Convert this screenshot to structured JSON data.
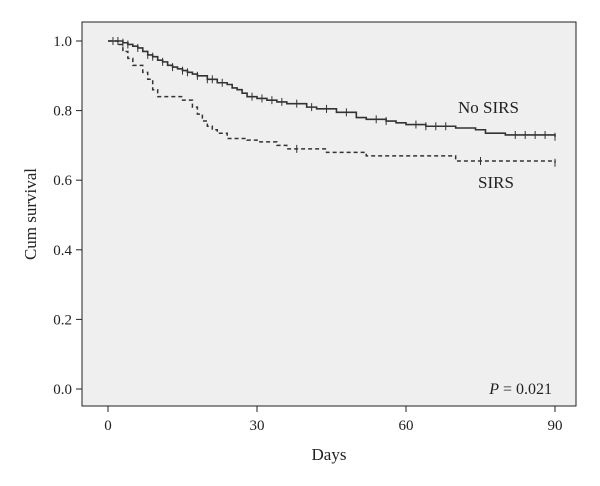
{
  "chart_data": {
    "type": "line",
    "subtype": "kaplan-meier-step",
    "xlabel": "Days",
    "ylabel": "Cum survival",
    "xlim": [
      0,
      90
    ],
    "ylim": [
      0.0,
      1.0
    ],
    "x_ticks": [
      0,
      30,
      60,
      90
    ],
    "x_tick_labels": [
      "0",
      "30",
      "60",
      "90"
    ],
    "y_ticks": [
      0.0,
      0.2,
      0.4,
      0.6,
      0.8,
      1.0
    ],
    "y_tick_labels": [
      "0.0",
      "0.2",
      "0.4",
      "0.6",
      "0.8",
      "1.0"
    ],
    "grid": false,
    "background": "#efefef",
    "annotation": {
      "prefix": "P",
      "text": " = 0.021"
    },
    "series": [
      {
        "name": "No SIRS",
        "style": "solid",
        "color": "#333333",
        "x": [
          0,
          3,
          4,
          5,
          6,
          7,
          8,
          9,
          10,
          11,
          12,
          13,
          14,
          15,
          16,
          17,
          18,
          20,
          22,
          24,
          25,
          26,
          27,
          28,
          30,
          32,
          34,
          36,
          40,
          42,
          46,
          50,
          52,
          56,
          58,
          60,
          64,
          70,
          74,
          76,
          80,
          90
        ],
        "y": [
          1.0,
          0.995,
          0.99,
          0.985,
          0.98,
          0.97,
          0.96,
          0.955,
          0.945,
          0.94,
          0.93,
          0.925,
          0.92,
          0.915,
          0.91,
          0.905,
          0.9,
          0.89,
          0.88,
          0.875,
          0.865,
          0.86,
          0.85,
          0.84,
          0.835,
          0.83,
          0.825,
          0.82,
          0.81,
          0.805,
          0.795,
          0.78,
          0.775,
          0.77,
          0.765,
          0.76,
          0.755,
          0.75,
          0.745,
          0.735,
          0.73,
          0.725
        ],
        "censor_x": [
          1,
          2,
          3,
          4,
          6,
          8,
          9,
          11,
          13,
          15,
          16,
          18,
          20,
          21,
          23,
          29,
          31,
          33,
          35,
          38,
          41,
          44,
          48,
          54,
          56,
          62,
          64,
          66,
          68,
          82,
          84,
          86,
          88,
          90
        ]
      },
      {
        "name": "SIRS",
        "style": "dashed",
        "color": "#333333",
        "x": [
          0,
          2,
          3,
          4,
          5,
          7,
          8,
          9,
          10,
          15,
          17,
          18,
          19,
          20,
          21,
          22,
          24,
          28,
          30,
          34,
          36,
          44,
          52,
          70,
          90
        ],
        "y": [
          1.0,
          0.99,
          0.97,
          0.95,
          0.93,
          0.91,
          0.89,
          0.86,
          0.84,
          0.83,
          0.81,
          0.79,
          0.77,
          0.755,
          0.745,
          0.735,
          0.72,
          0.715,
          0.71,
          0.7,
          0.69,
          0.68,
          0.67,
          0.655,
          0.65
        ],
        "censor_x": [
          38,
          75,
          90
        ]
      }
    ]
  }
}
